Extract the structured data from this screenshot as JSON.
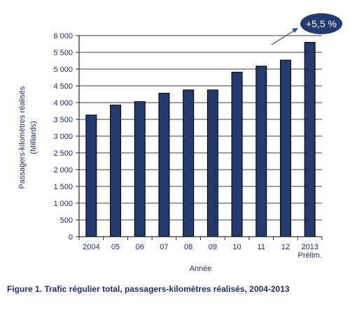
{
  "chart_data": {
    "type": "bar",
    "categories": [
      "2004",
      "05",
      "06",
      "07",
      "08",
      "09",
      "10",
      "11",
      "12",
      "2013"
    ],
    "category_sublabels": [
      "",
      "",
      "",
      "",
      "",
      "",
      "",
      "",
      "",
      "Prélim."
    ],
    "values": [
      3630,
      3930,
      4030,
      4280,
      4380,
      4380,
      4910,
      5090,
      5270,
      5800
    ],
    "xlabel": "Année",
    "ylabel": "Passagers-kilomètres réalisés",
    "ylabel_unit": "(Milliards)",
    "ylim": [
      0,
      6000
    ],
    "yticks": [
      0,
      500,
      1000,
      1500,
      2000,
      2500,
      3000,
      3500,
      4000,
      4500,
      5000,
      5500,
      6000
    ],
    "ytick_labels": [
      "0",
      "500",
      "1 000",
      "1 500",
      "2 000",
      "2 500",
      "3 000",
      "3 500",
      "4 000",
      "4 500",
      "5 000",
      "5 500",
      "6 000"
    ],
    "grid": true,
    "annotation": "+5,5 %",
    "colors": {
      "bar": "#233a6e",
      "bar_edge": "#000000",
      "annotation_fill": "#223b73",
      "annotation_text": "#ffffff",
      "axis_text": "#1f2f6b",
      "arrow": "#2d4f8a"
    }
  },
  "caption": "Figure 1.  Trafic régulier total, passagers-kilomètres réalisés, 2004-2013"
}
